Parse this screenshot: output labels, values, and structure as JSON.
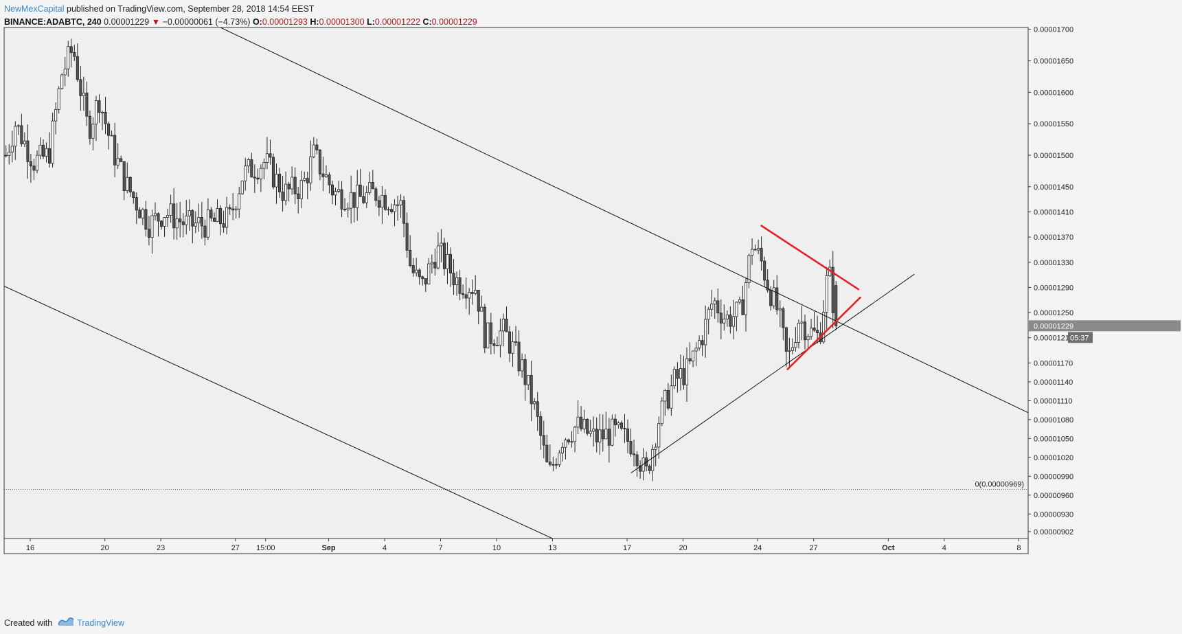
{
  "header": {
    "author": "NewMexCapital",
    "published": "published on TradingView.com, September 28, 2018 14:54 EEST",
    "symbol": "BINANCE:ADABTC, 240",
    "last": "0.00001229",
    "change_arrow": "▼",
    "change": "−0.00000061 (−4.73%)",
    "o_label": "O:",
    "o_value": "0.00001293",
    "h_label": "H:",
    "h_value": "0.00001300",
    "l_label": "L:",
    "l_value": "0.00001222",
    "c_label": "C:",
    "c_value": "0.00001229"
  },
  "footer": {
    "created_with": "Created with",
    "brand": "TradingView",
    "icon": "tradingview-logo-icon"
  },
  "colors": {
    "background": "#f4f4f4",
    "plot_background": "#efefef",
    "candle_up": "#ffffff",
    "candle_down": "#555555",
    "candle_outline": "#222222",
    "trendline": "#111111",
    "triangle": "#e82020",
    "price_badge": "#8a8a8a",
    "brand": "#3a87c9"
  },
  "chart_data": {
    "type": "candlestick",
    "title": "",
    "symbol": "BINANCE:ADABTC",
    "interval": "240",
    "ylim": [
      8.91e-06,
      1.703e-05
    ],
    "y_ticks": [
      "0.00001700",
      "0.00001650",
      "0.00001600",
      "0.00001550",
      "0.00001500",
      "0.00001450",
      "0.00001410",
      "0.00001370",
      "0.00001330",
      "0.00001290",
      "0.00001250",
      "0.00001210",
      "0.00001170",
      "0.00001140",
      "0.00001110",
      "0.00001080",
      "0.00001050",
      "0.00001020",
      "0.00000990",
      "0.00000960",
      "0.00000930",
      "0.00000902"
    ],
    "x_ticks": [
      "16",
      "20",
      "23",
      "27",
      "15:00",
      "Sep",
      "4",
      "7",
      "10",
      "13",
      "17",
      "20",
      "24",
      "27",
      "Oct",
      "4",
      "8"
    ],
    "x_tick_days": [
      -16,
      -12,
      -9,
      -5,
      -3.38,
      0,
      3,
      6,
      9,
      12,
      16,
      19,
      23,
      26,
      30,
      33,
      37
    ],
    "x_range_days": [
      -17.4,
      37.5
    ],
    "current_price_label": "0.00001229",
    "current_price": 1.229e-05,
    "countdown_label": "05:37",
    "horizontal_level": {
      "label": "0(0.00000969)",
      "value": 9.69e-06,
      "style": "dotted"
    },
    "candles_summary": {
      "start_day": -17.3,
      "end_day": 27.2,
      "bar_hours": 4,
      "anchors": [
        [
          -17.3,
          1.5e-05
        ],
        [
          -16.8,
          1.55e-05
        ],
        [
          -15.8,
          1.49e-05
        ],
        [
          -15.0,
          1.5e-05
        ],
        [
          -14.3,
          1.63e-05
        ],
        [
          -13.7,
          1.67e-05
        ],
        [
          -12.9,
          1.54e-05
        ],
        [
          -12.3,
          1.59e-05
        ],
        [
          -11.6,
          1.51e-05
        ],
        [
          -10.8,
          1.45e-05
        ],
        [
          -9.6,
          1.39e-05
        ],
        [
          -8.8,
          1.41e-05
        ],
        [
          -7.6,
          1.39e-05
        ],
        [
          -6.6,
          1.39e-05
        ],
        [
          -5.3,
          1.4e-05
        ],
        [
          -4.6,
          1.47e-05
        ],
        [
          -3.4,
          1.49e-05
        ],
        [
          -2.4,
          1.44e-05
        ],
        [
          -1.4,
          1.45e-05
        ],
        [
          -0.8,
          1.5e-05
        ],
        [
          0.3,
          1.44e-05
        ],
        [
          1.6,
          1.43e-05
        ],
        [
          2.5,
          1.44e-05
        ],
        [
          3.9,
          1.42e-05
        ],
        [
          4.4,
          1.32e-05
        ],
        [
          5.0,
          1.29e-05
        ],
        [
          5.8,
          1.35e-05
        ],
        [
          6.9,
          1.3e-05
        ],
        [
          7.9,
          1.29e-05
        ],
        [
          8.4,
          1.21e-05
        ],
        [
          9.4,
          1.22e-05
        ],
        [
          10.4,
          1.16e-05
        ],
        [
          11.1,
          1.09e-05
        ],
        [
          11.8,
          9.9e-06
        ],
        [
          12.5,
          1.05e-05
        ],
        [
          13.3,
          1.07e-05
        ],
        [
          14.3,
          1.05e-05
        ],
        [
          15.3,
          1.06e-05
        ],
        [
          16.4,
          1.04e-05
        ],
        [
          17.0,
          9.9e-06
        ],
        [
          17.7,
          1.08e-05
        ],
        [
          18.5,
          1.14e-05
        ],
        [
          19.3,
          1.16e-05
        ],
        [
          20.1,
          1.22e-05
        ],
        [
          20.6,
          1.27e-05
        ],
        [
          21.3,
          1.24e-05
        ],
        [
          22.1,
          1.25e-05
        ],
        [
          22.7,
          1.36e-05
        ],
        [
          23.2,
          1.33e-05
        ],
        [
          23.6,
          1.29e-05
        ],
        [
          24.1,
          1.25e-05
        ],
        [
          24.6,
          1.17e-05
        ],
        [
          25.2,
          1.24e-05
        ],
        [
          25.8,
          1.22e-05
        ],
        [
          26.3,
          1.21e-05
        ],
        [
          26.8,
          1.32e-05
        ],
        [
          27.2,
          1.23e-05
        ]
      ]
    },
    "trendlines": [
      {
        "name": "upper-channel",
        "points": [
          [
            -5.8,
            1.703e-05
          ],
          [
            37.5,
            1.091e-05
          ]
        ]
      },
      {
        "name": "lower-channel",
        "points": [
          [
            -17.4,
            1.292e-05
          ],
          [
            12.0,
            8.91e-06
          ]
        ]
      },
      {
        "name": "rising-support",
        "points": [
          [
            16.2,
            9.95e-06
          ],
          [
            31.4,
            1.311e-05
          ]
        ]
      }
    ],
    "triangle": [
      {
        "name": "triangle-top",
        "points": [
          [
            23.2,
            1.388e-05
          ],
          [
            28.4,
            1.287e-05
          ]
        ]
      },
      {
        "name": "triangle-bottom",
        "points": [
          [
            24.6,
            1.16e-05
          ],
          [
            28.5,
            1.274e-05
          ]
        ]
      }
    ]
  }
}
